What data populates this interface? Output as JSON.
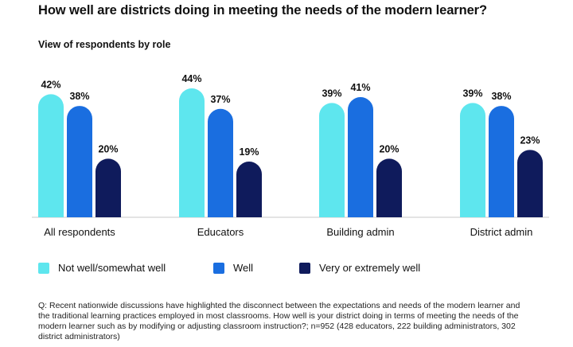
{
  "title": "How well are districts doing in meeting the needs of the modern learner?",
  "subtitle": "View of respondents by role",
  "footnote": "Q: Recent nationwide discussions have highlighted the disconnect between the expectations and needs of the modern learner and the traditional learning practices employed in most classrooms. How well is your district doing in terms of meeting the needs of the modern learner such as by modifying or adjusting classroom instruction?; n=952 (428 educators, 222 building administrators, 302 district administrators)",
  "legend": [
    {
      "name": "Not well/somewhat well",
      "color": "#5ee6ee"
    },
    {
      "name": "Well",
      "color": "#1a6ee0"
    },
    {
      "name": "Very or extremely well",
      "color": "#0f1b5c"
    }
  ],
  "chart_data": {
    "type": "bar",
    "categories": [
      "All respondents",
      "Educators",
      "Building admin",
      "District admin"
    ],
    "series": [
      {
        "name": "Not well/somewhat well",
        "color": "#5ee6ee",
        "values": [
          42,
          44,
          39,
          39
        ]
      },
      {
        "name": "Well",
        "color": "#1a6ee0",
        "values": [
          38,
          37,
          41,
          38
        ]
      },
      {
        "name": "Very or extremely well",
        "color": "#0f1b5c",
        "values": [
          20,
          19,
          20,
          23
        ]
      }
    ],
    "value_suffix": "%",
    "ylim": [
      0,
      44
    ],
    "grid": false,
    "legend_position": "bottom"
  }
}
